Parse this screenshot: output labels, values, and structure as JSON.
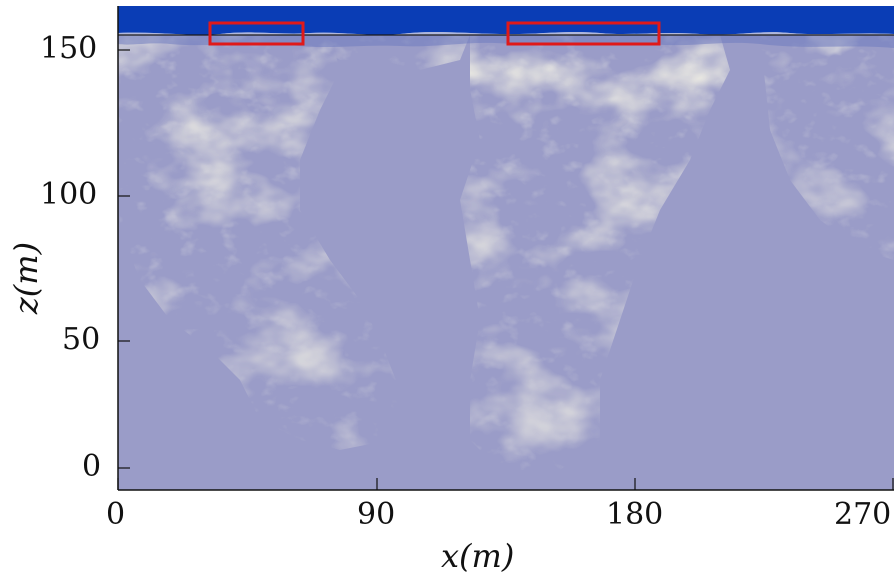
{
  "figure": {
    "x_axis": {
      "label": "x(m)",
      "ticks": [
        "0",
        "90",
        "180",
        "270"
      ],
      "range": [
        0,
        270
      ]
    },
    "z_axis": {
      "label": "z(m)",
      "ticks": [
        "0",
        "50",
        "100",
        "150"
      ],
      "range": [
        0,
        160
      ]
    },
    "colors": {
      "water": "#9a9cc8",
      "plume": "#d4d2c2",
      "air": "#0a3db5",
      "highlight_box": "#e01919"
    },
    "highlights": [
      {
        "x_range": [
          31,
          63
        ],
        "z_range": [
          152,
          160
        ]
      },
      {
        "x_range": [
          134,
          186
        ],
        "z_range": [
          152,
          160
        ]
      }
    ],
    "free_surface_z": 157
  }
}
